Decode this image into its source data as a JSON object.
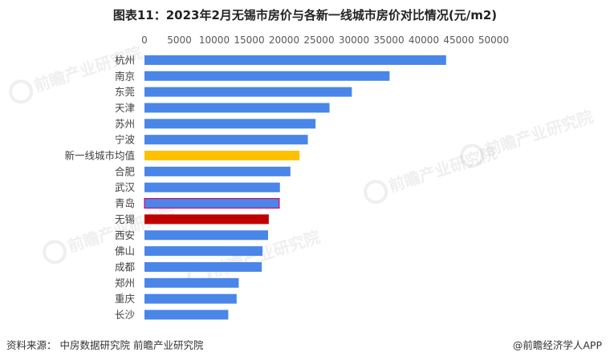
{
  "title": "图表11：2023年2月无锡市房价与各新一线城市房价对比情况(元/m2)",
  "source": "资料来源：  中房数据研究院 前瞻产业研究院",
  "brand": "@前瞻经济学人APP",
  "watermark": "前瞻产业研究院",
  "colors": {
    "default_bar": "#4a86e8",
    "average_bar": "#ffc000",
    "wuxi_bar": "#c00000",
    "highlight_outline": "#e0006a",
    "axis_text": "#595959"
  },
  "chart_data": {
    "type": "bar",
    "orientation": "horizontal",
    "xlim": [
      0,
      50000
    ],
    "xticks": [
      "0",
      "5000",
      "10000",
      "15000",
      "20000",
      "25000",
      "30000",
      "35000",
      "40000",
      "45000",
      "50000"
    ],
    "tick_values": [
      0,
      5000,
      10000,
      15000,
      20000,
      25000,
      30000,
      35000,
      40000,
      45000,
      50000
    ],
    "categories": [
      "杭州",
      "南京",
      "东莞",
      "天津",
      "苏州",
      "宁波",
      "新一线城市均值",
      "合肥",
      "武汉",
      "青岛",
      "无锡",
      "西安",
      "佛山",
      "成都",
      "郑州",
      "重庆",
      "长沙"
    ],
    "values": [
      43200,
      35100,
      29700,
      26500,
      24500,
      23400,
      22200,
      20900,
      19400,
      19300,
      17800,
      17700,
      16900,
      16800,
      13500,
      13200,
      12000
    ],
    "bar_colors": [
      "default",
      "default",
      "default",
      "default",
      "default",
      "default",
      "average",
      "default",
      "default",
      "default_outlined",
      "wuxi",
      "default",
      "default",
      "default",
      "default",
      "default",
      "default"
    ],
    "grid": false,
    "legend": "none"
  }
}
